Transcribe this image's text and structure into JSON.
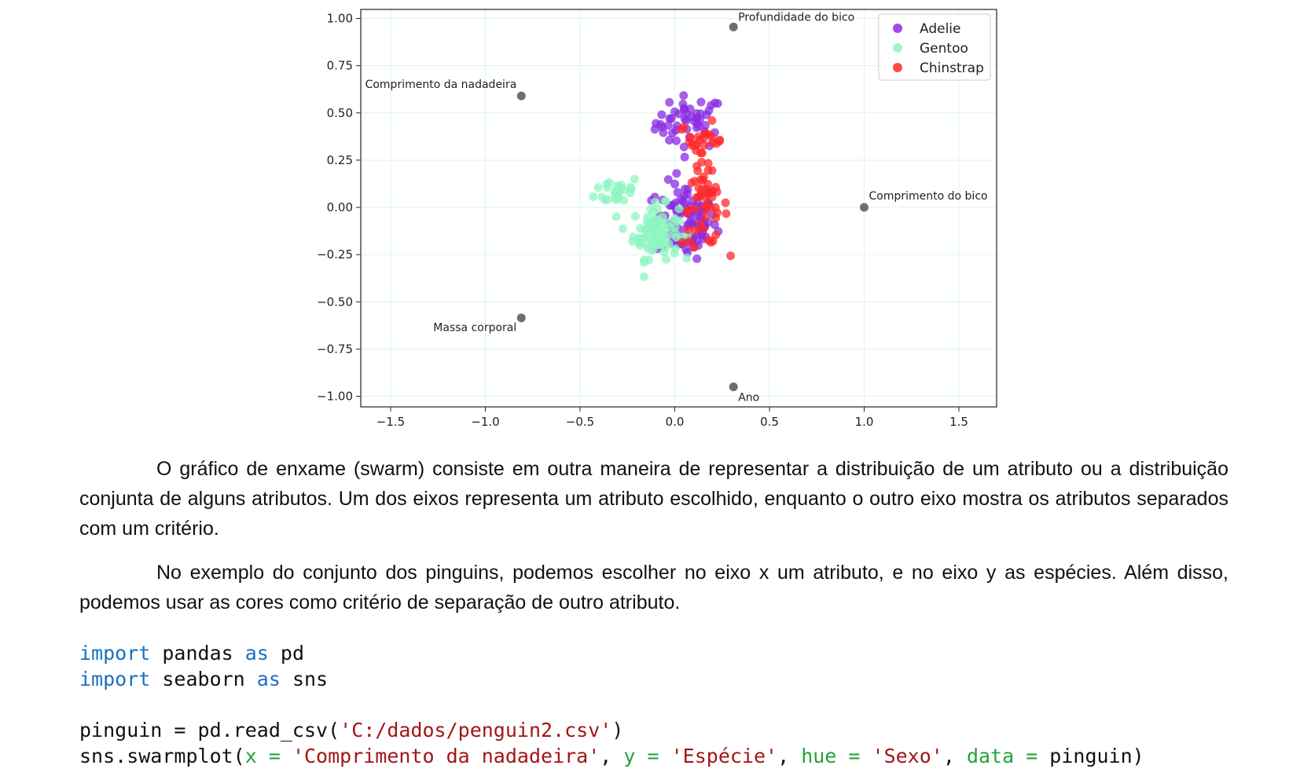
{
  "chart_data": {
    "type": "scatter",
    "xlim": [
      -1.7,
      1.7
    ],
    "ylim": [
      -1.05,
      1.05
    ],
    "x_ticks": [
      -1.5,
      -1.0,
      -0.5,
      0.0,
      0.5,
      1.0,
      1.5
    ],
    "y_ticks": [
      1.0,
      0.75,
      0.5,
      0.25,
      0.0,
      -0.25,
      -0.5,
      -0.75,
      -1.0
    ],
    "x_tick_labels": [
      "−1.5",
      "−1.0",
      "−0.5",
      "0.0",
      "0.5",
      "1.0",
      "1.5"
    ],
    "y_tick_labels": [
      "1.00",
      "0.75",
      "0.50",
      "0.25",
      "0.00",
      "−0.25",
      "−0.50",
      "−0.75",
      "−1.00"
    ],
    "grid": true,
    "grid_color": "#d9f7ec",
    "legend_position": "top-right",
    "series": [
      {
        "name": "Adelie",
        "color": "#8a2be2",
        "clusters": [
          {
            "cx": 0.08,
            "cy": 0.45,
            "sx": 0.09,
            "sy": 0.07,
            "n": 48
          },
          {
            "cx": 0.06,
            "cy": -0.07,
            "sx": 0.08,
            "sy": 0.1,
            "n": 95
          }
        ]
      },
      {
        "name": "Gentoo",
        "color": "#8ef5c0",
        "clusters": [
          {
            "cx": -0.3,
            "cy": 0.09,
            "sx": 0.06,
            "sy": 0.04,
            "n": 28
          },
          {
            "cx": -0.1,
            "cy": -0.13,
            "sx": 0.06,
            "sy": 0.07,
            "n": 92
          }
        ]
      },
      {
        "name": "Chinstrap",
        "color": "#ff2a2a",
        "clusters": [
          {
            "cx": 0.14,
            "cy": 0.35,
            "sx": 0.06,
            "sy": 0.05,
            "n": 26
          },
          {
            "cx": 0.16,
            "cy": 0.0,
            "sx": 0.06,
            "sy": 0.1,
            "n": 48
          }
        ]
      }
    ],
    "loadings": [
      {
        "label": "Profundidade do bico",
        "x": 0.31,
        "y": 0.955,
        "anchor": "start",
        "dx": 6,
        "dy": -8
      },
      {
        "label": "Comprimento da nadadeira",
        "x": -0.81,
        "y": 0.59,
        "anchor": "end",
        "dx": -6,
        "dy": -10
      },
      {
        "label": "Comprimento do bico",
        "x": 1.0,
        "y": 0.0,
        "anchor": "start",
        "dx": 6,
        "dy": -10
      },
      {
        "label": "Massa corporal",
        "x": -0.81,
        "y": -0.585,
        "anchor": "end",
        "dx": -6,
        "dy": 17
      },
      {
        "label": "Ano",
        "x": 0.31,
        "y": -0.95,
        "anchor": "start",
        "dx": 6,
        "dy": 18
      }
    ],
    "loading_color": "#6e6e6e"
  },
  "text": {
    "para1": "O gráfico de enxame (swarm) consiste em outra maneira de representar a distribuição de um atributo ou a distribuição conjunta de alguns atributos. Um dos eixos representa um atributo escolhido, enquanto o outro eixo mostra os atributos separados com um critério.",
    "para2": "No exemplo do conjunto dos pinguins, podemos escolher no eixo x um atributo, e no eixo y as espécies. Além disso, podemos usar as cores como critério de separação de outro atributo."
  },
  "code": {
    "line1_kw1": "import",
    "line1_mod": " pandas ",
    "line1_kw2": "as",
    "line1_alias": " pd",
    "line2_kw1": "import",
    "line2_mod": " seaborn ",
    "line2_kw2": "as",
    "line2_alias": " sns",
    "line3_a": "pinguin = pd.read_csv(",
    "line3_str": "'C:/dados/penguin2.csv'",
    "line3_b": ")",
    "line4_a": "sns.swarmplot(",
    "line4_x": "x =",
    "line4_xval": "'Comprimento da nadadeira'",
    "line4_y": "y =",
    "line4_yval": "'Espécie'",
    "line4_hue": "hue =",
    "line4_hueval": "'Sexo'",
    "line4_data": "data =",
    "line4_dataval": " pinguin)",
    "comma": ", ",
    "space": " "
  }
}
